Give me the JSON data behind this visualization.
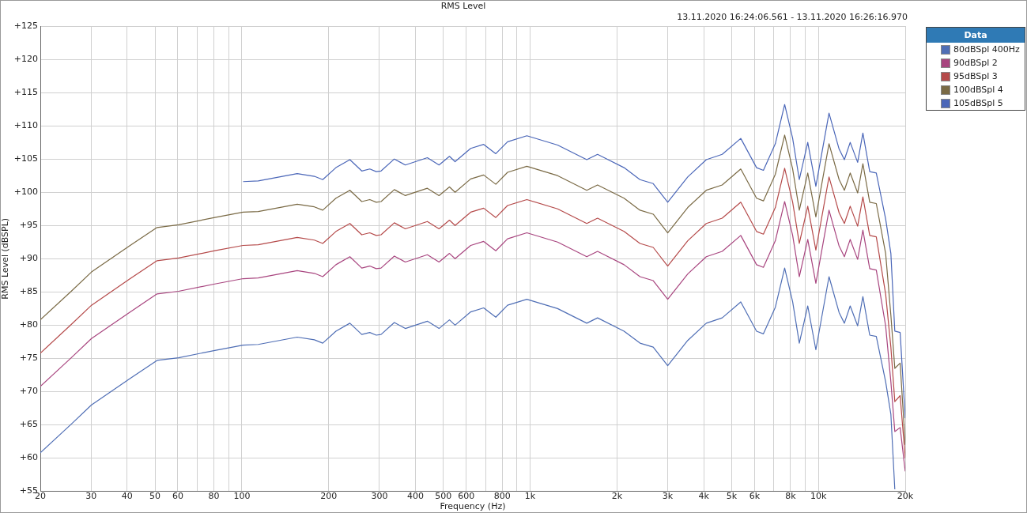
{
  "chart_data": {
    "type": "line",
    "title": "RMS Level",
    "subtitle": "13.11.2020 16:24:06.561 - 13.11.2020 16:26:16.970",
    "xlabel": "Frequency (Hz)",
    "ylabel": "RMS Level (dBSPL)",
    "legend_title": "Data",
    "legend": "right",
    "log": "x",
    "grid": true,
    "marker": "none",
    "line_style": "solid",
    "x": [
      20,
      25.6,
      30.1,
      40.7,
      50.8,
      60.3,
      80.6,
      101,
      114,
      155.6,
      178.5,
      190.8,
      212,
      237,
      260.6,
      277.8,
      292.5,
      304,
      338,
      369,
      440,
      483,
      525,
      549,
      622,
      690,
      760,
      835,
      974,
      1245,
      1572,
      1713,
      2117,
      2404,
      2672,
      3000,
      3520,
      4083,
      4636,
      5377,
      6100,
      6443,
      7087,
      7634,
      8138,
      8582,
      9180,
      9795,
      10880,
      11794,
      12300,
      12885,
      13676,
      14260,
      15060,
      15870,
      17100,
      17830,
      18400,
      19200,
      20000
    ],
    "xlim": [
      20,
      20000
    ],
    "xticks": [
      20,
      30,
      40,
      50,
      60,
      {
        "value": 70,
        "label": null
      },
      80,
      {
        "value": 90,
        "label": null
      },
      100,
      200,
      300,
      400,
      500,
      600,
      {
        "value": 700,
        "label": null
      },
      800,
      {
        "value": 900,
        "label": null
      },
      {
        "value": 1000,
        "label": "1k"
      },
      {
        "value": 2000,
        "label": "2k"
      },
      {
        "value": 3000,
        "label": "3k"
      },
      {
        "value": 4000,
        "label": "4k"
      },
      {
        "value": 5000,
        "label": "5k"
      },
      {
        "value": 6000,
        "label": "6k"
      },
      {
        "value": 7000,
        "label": null
      },
      {
        "value": 8000,
        "label": "8k"
      },
      {
        "value": 9000,
        "label": null
      },
      {
        "value": 10000,
        "label": "10k"
      },
      {
        "value": 20000,
        "label": "20k"
      }
    ],
    "ylim": [
      55,
      125
    ],
    "yticks": [
      {
        "value": 55,
        "label": "+55"
      },
      {
        "value": 60,
        "label": "+60"
      },
      {
        "value": 65,
        "label": "+65"
      },
      {
        "value": 70,
        "label": "+70"
      },
      {
        "value": 75,
        "label": "+75"
      },
      {
        "value": 80,
        "label": "+80"
      },
      {
        "value": 85,
        "label": "+85"
      },
      {
        "value": 90,
        "label": "+90"
      },
      {
        "value": 95,
        "label": "+95"
      },
      {
        "value": 100,
        "label": "+100"
      },
      {
        "value": 105,
        "label": "+105"
      },
      {
        "value": 110,
        "label": "+110"
      },
      {
        "value": 115,
        "label": "+115"
      },
      {
        "value": 120,
        "label": "+120"
      },
      {
        "value": 125,
        "label": "+125"
      }
    ],
    "series": [
      {
        "name": "80dBSpl 400Hz",
        "color": "#4f6eb5",
        "values": [
          60.8,
          65.1,
          68.0,
          71.9,
          74.7,
          75.1,
          76.2,
          77.0,
          77.1,
          78.2,
          77.8,
          77.3,
          79.1,
          80.3,
          78.6,
          78.9,
          78.5,
          78.6,
          80.4,
          79.5,
          80.6,
          79.5,
          80.8,
          80.0,
          82.0,
          82.6,
          81.2,
          83.0,
          83.9,
          82.5,
          80.3,
          81.1,
          79.1,
          77.3,
          76.7,
          73.9,
          77.7,
          80.3,
          81.1,
          83.5,
          79.1,
          78.7,
          82.7,
          88.6,
          83.5,
          77.3,
          82.9,
          76.3,
          87.3,
          81.9,
          80.3,
          82.9,
          79.9,
          84.3,
          78.5,
          78.3,
          71.5,
          66.6,
          55.3,
          null,
          null
        ]
      },
      {
        "name": "90dBSpl 2",
        "color": "#a8457f",
        "values": [
          70.8,
          75.1,
          78.0,
          81.9,
          84.7,
          85.1,
          86.2,
          87.0,
          87.1,
          88.2,
          87.8,
          87.3,
          89.1,
          90.3,
          88.6,
          88.9,
          88.5,
          88.6,
          90.4,
          89.5,
          90.6,
          89.5,
          90.8,
          90.0,
          92.0,
          92.6,
          91.2,
          93.0,
          93.9,
          92.5,
          90.3,
          91.1,
          89.1,
          87.3,
          86.7,
          83.9,
          87.7,
          90.3,
          91.1,
          93.5,
          89.1,
          88.7,
          92.7,
          98.6,
          93.5,
          87.3,
          92.9,
          86.3,
          97.3,
          91.9,
          90.3,
          92.9,
          89.9,
          94.3,
          88.5,
          88.3,
          79.9,
          71.5,
          64.0,
          64.6,
          58.0
        ]
      },
      {
        "name": "95dBSpl 3",
        "color": "#b54a4a",
        "values": [
          75.8,
          80.1,
          83.0,
          86.9,
          89.7,
          90.1,
          91.2,
          92.0,
          92.1,
          93.2,
          92.8,
          92.3,
          94.1,
          95.3,
          93.6,
          93.9,
          93.5,
          93.6,
          95.4,
          94.5,
          95.6,
          94.5,
          95.8,
          95.0,
          97.0,
          97.6,
          96.2,
          98.0,
          98.9,
          97.5,
          95.3,
          96.1,
          94.1,
          92.3,
          91.7,
          88.9,
          92.7,
          95.3,
          96.1,
          98.5,
          94.1,
          93.7,
          97.7,
          103.6,
          98.5,
          92.3,
          97.9,
          91.3,
          102.3,
          96.9,
          95.3,
          97.9,
          94.9,
          99.3,
          93.5,
          93.3,
          84.7,
          76.7,
          68.5,
          69.4,
          60.0
        ]
      },
      {
        "name": "100dBSpl 4",
        "color": "#7a6a45",
        "values": [
          80.8,
          85.1,
          88.0,
          91.9,
          94.7,
          95.1,
          96.2,
          97.0,
          97.1,
          98.2,
          97.8,
          97.3,
          99.1,
          100.3,
          98.6,
          98.9,
          98.5,
          98.6,
          100.4,
          99.5,
          100.6,
          99.5,
          100.8,
          100.0,
          102.0,
          102.6,
          101.2,
          103.0,
          103.9,
          102.5,
          100.3,
          101.1,
          99.1,
          97.3,
          96.7,
          93.9,
          97.7,
          100.3,
          101.1,
          103.5,
          99.1,
          98.7,
          102.7,
          108.6,
          103.5,
          97.3,
          102.9,
          96.3,
          107.3,
          101.9,
          100.3,
          102.9,
          99.9,
          104.3,
          98.5,
          98.3,
          90.8,
          81.5,
          73.5,
          74.3,
          62.0
        ]
      },
      {
        "name": "105dBSpl 5",
        "color": "#4a66b8",
        "values": [
          null,
          null,
          null,
          null,
          null,
          null,
          null,
          101.6,
          101.7,
          102.8,
          102.4,
          101.9,
          103.7,
          104.9,
          103.2,
          103.5,
          103.1,
          103.2,
          105.0,
          104.1,
          105.2,
          104.1,
          105.4,
          104.6,
          106.6,
          107.2,
          105.8,
          107.6,
          108.5,
          107.1,
          104.9,
          105.7,
          103.7,
          101.9,
          101.3,
          98.5,
          102.3,
          104.9,
          105.7,
          108.1,
          103.7,
          103.3,
          107.3,
          113.2,
          108.1,
          101.9,
          107.5,
          100.9,
          111.9,
          106.5,
          104.9,
          107.5,
          104.5,
          108.9,
          103.1,
          102.9,
          96.0,
          90.8,
          79.1,
          78.9,
          66.0
        ]
      }
    ]
  }
}
